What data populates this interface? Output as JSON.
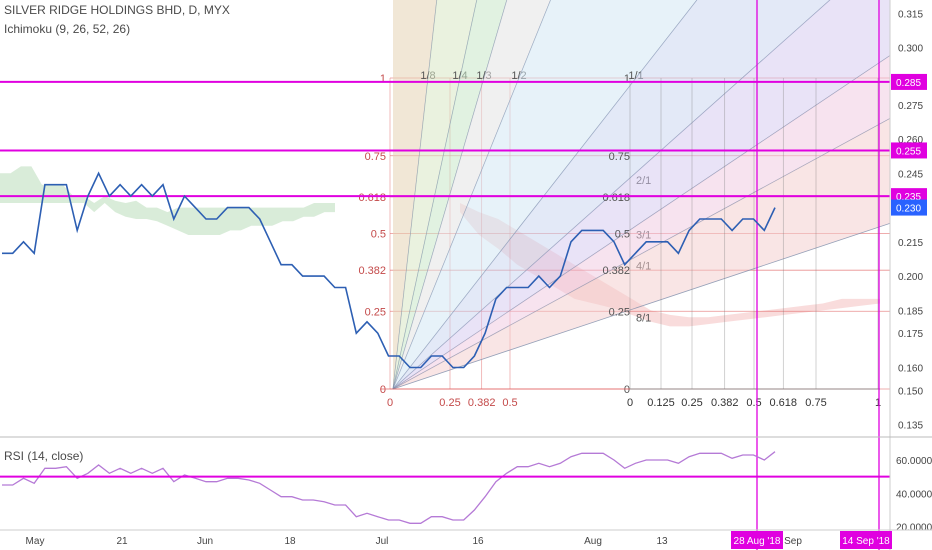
{
  "header": {
    "title": "SILVER RIDGE HOLDINGS BHD, D, MYX",
    "indicator": "Ichimoku (9, 26, 52, 26)",
    "rsi_label": "RSI (14, close)"
  },
  "colors": {
    "price_line": "#2d5fb3",
    "fib_red": "#e06060",
    "fib_pink_text": "#c44a4a",
    "magenta": "#e000e0",
    "rsi_line": "#b57ad6",
    "axis_text": "#444444",
    "current_tag": "#2962ff"
  },
  "chart_data": [
    {
      "type": "line",
      "title": "SILVER RIDGE HOLDINGS BHD, D, MYX",
      "x_axis": {
        "tick_labels": [
          "May",
          "21",
          "Jun",
          "18",
          "Jul",
          "16",
          "Aug",
          "13",
          "Sep"
        ],
        "date_tags": [
          "28 Aug '18",
          "14 Sep '18"
        ]
      },
      "y_axis": {
        "range": [
          0.13,
          0.318
        ],
        "tick_labels": [
          "0.315",
          "0.300",
          "0.275",
          "0.260",
          "0.245",
          "0.230",
          "0.215",
          "0.200",
          "0.185",
          "0.175",
          "0.160",
          "0.150",
          "0.135"
        ],
        "tick_values": [
          0.315,
          0.3,
          0.275,
          0.26,
          0.245,
          0.23,
          0.215,
          0.2,
          0.185,
          0.175,
          0.16,
          0.15,
          0.135
        ],
        "highlight_tags": [
          {
            "label": "0.285",
            "value": 0.285
          },
          {
            "label": "0.255",
            "value": 0.255
          },
          {
            "label": "0.235",
            "value": 0.235
          }
        ],
        "current_tag": {
          "label": "0.230",
          "value": 0.23
        }
      },
      "series": [
        {
          "values": [
            0.21,
            0.21,
            0.215,
            0.21,
            0.24,
            0.24,
            0.24,
            0.22,
            0.235,
            0.245,
            0.235,
            0.24,
            0.235,
            0.24,
            0.235,
            0.24,
            0.225,
            0.235,
            0.23,
            0.225,
            0.225,
            0.23,
            0.23,
            0.23,
            0.225,
            0.215,
            0.205,
            0.205,
            0.2,
            0.2,
            0.2,
            0.195,
            0.195,
            0.175,
            0.18,
            0.175,
            0.165,
            0.165,
            0.16,
            0.16,
            0.165,
            0.165,
            0.16,
            0.16,
            0.165,
            0.175,
            0.19,
            0.195,
            0.195,
            0.195,
            0.2,
            0.195,
            0.2,
            0.215,
            0.22,
            0.22,
            0.22,
            0.215,
            0.205,
            0.21,
            0.215,
            0.215,
            0.215,
            0.21,
            0.22,
            0.225,
            0.225,
            0.225,
            0.22,
            0.225,
            0.225,
            0.22,
            0.23
          ]
        }
      ],
      "ichimoku_cloud": {
        "upper": [
          0.245,
          0.245,
          0.248,
          0.248,
          0.24,
          0.24,
          0.24,
          0.235,
          0.235,
          0.232,
          0.235,
          0.233,
          0.232,
          0.233,
          0.23,
          0.23,
          0.228,
          0.23,
          0.23,
          0.23,
          0.23,
          0.23,
          0.23,
          0.23,
          0.23,
          0.23,
          0.23,
          0.23,
          0.23,
          0.23,
          0.232,
          0.232,
          0.232
        ],
        "lower": [
          0.232,
          0.232,
          0.232,
          0.232,
          0.232,
          0.232,
          0.232,
          0.232,
          0.232,
          0.228,
          0.232,
          0.228,
          0.226,
          0.225,
          0.225,
          0.224,
          0.222,
          0.22,
          0.218,
          0.218,
          0.218,
          0.218,
          0.22,
          0.22,
          0.222,
          0.222,
          0.222,
          0.224,
          0.224,
          0.226,
          0.226,
          0.228,
          0.228
        ],
        "upper2": [
          0.232,
          0.228,
          0.225,
          0.22,
          0.215,
          0.21,
          0.205,
          0.2,
          0.195,
          0.19,
          0.185,
          0.183,
          0.182,
          0.182,
          0.183,
          0.184,
          0.185,
          0.186,
          0.187,
          0.188,
          0.19,
          0.19,
          0.19
        ],
        "lower2": [
          0.228,
          0.218,
          0.212,
          0.205,
          0.2,
          0.195,
          0.19,
          0.188,
          0.186,
          0.183,
          0.18,
          0.178,
          0.178,
          0.179,
          0.18,
          0.181,
          0.182,
          0.183,
          0.184,
          0.185,
          0.186,
          0.187,
          0.188
        ]
      },
      "fib_levels_left": [
        "1",
        "0.75",
        "0.618",
        "0.5",
        "0.382",
        "0.25",
        "0"
      ],
      "fib_levels_bottom_left": [
        "0",
        "0.25",
        "0.382",
        "0.5"
      ],
      "fib_levels_right": [
        "1",
        "0.75",
        "0.618",
        "0.5",
        "0.382",
        "0.25",
        "0"
      ],
      "fib_levels_bottom_right": [
        "0",
        "0.125",
        "0.25",
        "0.382",
        "0.5",
        "0.618",
        "0.75",
        "1"
      ],
      "gann_fan_top_labels": [
        "1/8",
        "1/4",
        "1/3",
        "1/2",
        "1/1"
      ],
      "gann_fan_right_labels": [
        "2/1",
        "3/1",
        "4/1",
        "8/1"
      ],
      "horizontal_lines": [
        0.285,
        0.255,
        0.235
      ]
    },
    {
      "type": "line",
      "title": "RSI (14, close)",
      "y_axis": {
        "range": [
          18,
          72
        ],
        "tick_labels": [
          "60.0000",
          "40.0000",
          "20.0000"
        ],
        "tick_values": [
          60,
          40,
          20
        ]
      },
      "reference_level": 50,
      "series": [
        {
          "values": [
            45,
            45,
            49,
            46,
            55,
            55,
            56,
            49,
            52,
            57,
            52,
            55,
            52,
            55,
            52,
            55,
            47,
            51,
            49,
            47,
            47,
            49,
            49,
            48,
            46,
            42,
            38,
            38,
            36,
            36,
            35,
            33,
            33,
            26,
            28,
            26,
            24,
            24,
            22,
            22,
            26,
            26,
            24,
            24,
            30,
            38,
            47,
            52,
            56,
            56,
            58,
            56,
            58,
            62,
            64,
            64,
            64,
            60,
            55,
            58,
            60,
            60,
            60,
            58,
            62,
            64,
            64,
            64,
            61,
            63,
            63,
            60,
            65
          ]
        }
      ]
    }
  ]
}
